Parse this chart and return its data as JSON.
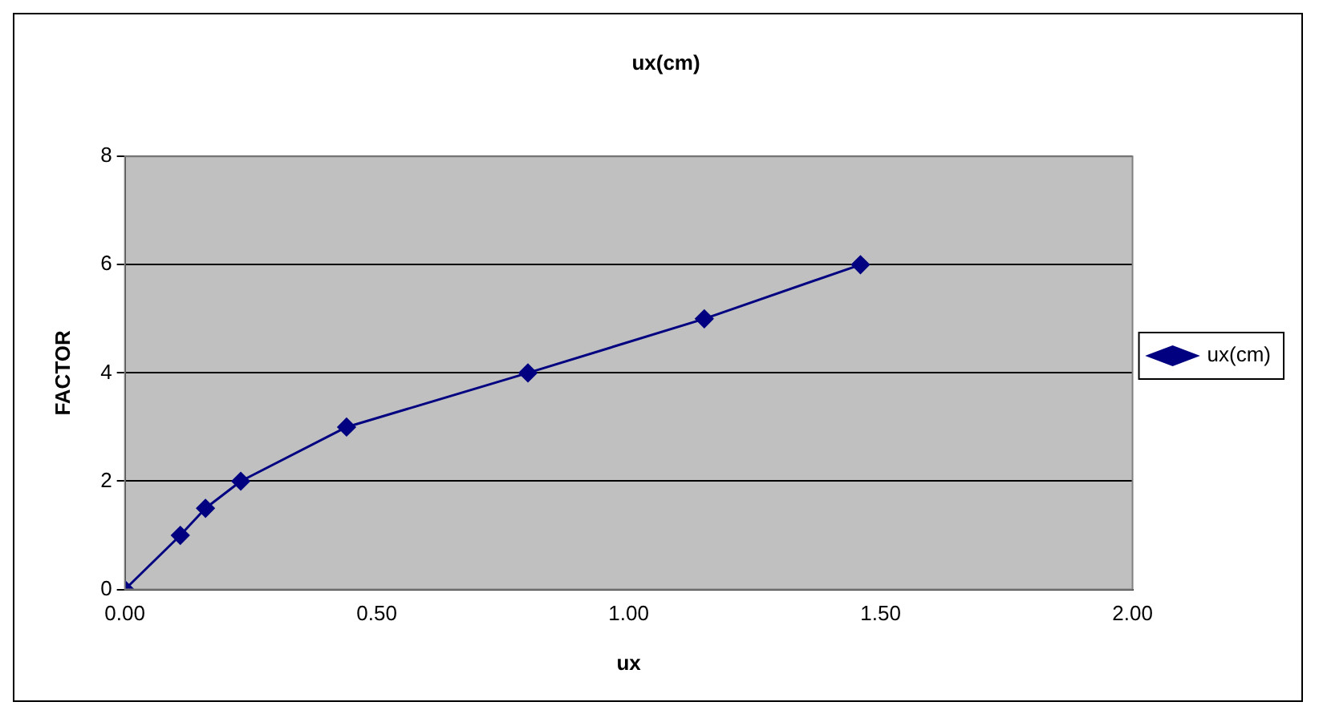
{
  "chart_data": {
    "type": "line",
    "title": "ux(cm)",
    "xlabel": "ux",
    "ylabel": "FACTOR",
    "series": [
      {
        "name": "ux(cm)",
        "color": "#000080",
        "x": [
          0,
          0.11,
          0.16,
          0.23,
          0.44,
          0.8,
          1.15,
          1.46
        ],
        "values": [
          0,
          1,
          1.5,
          2,
          3,
          4,
          5,
          6
        ]
      }
    ],
    "xlim": [
      0,
      2
    ],
    "xticks": [
      {
        "value": 0,
        "label": "0.00"
      },
      {
        "value": 0.5,
        "label": "0.50"
      },
      {
        "value": 1,
        "label": "1.00"
      },
      {
        "value": 1.5,
        "label": "1.50"
      },
      {
        "value": 2,
        "label": "2.00"
      }
    ],
    "ylim": [
      0,
      8
    ],
    "yticks": [
      0,
      2,
      4,
      6,
      8
    ],
    "grid": "y",
    "legend": "right",
    "marker": "diamond",
    "line_style": "solid"
  }
}
